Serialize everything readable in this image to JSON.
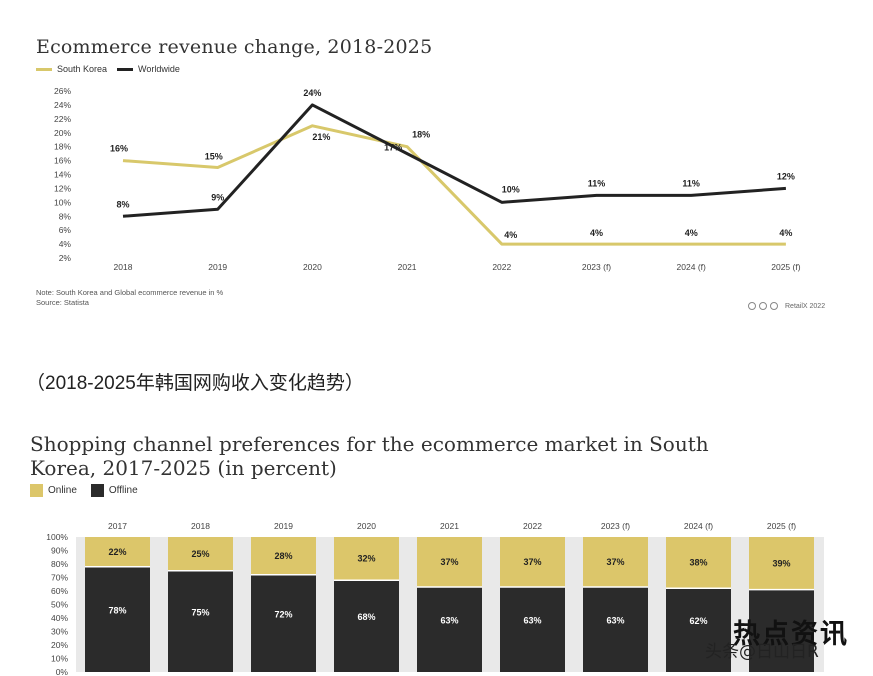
{
  "chart_data": [
    {
      "type": "line",
      "title": "Ecommerce revenue change, 2018-2025",
      "categories": [
        "2018",
        "2019",
        "2020",
        "2021",
        "2022",
        "2023 (f)",
        "2024 (f)",
        "2025 (f)"
      ],
      "series": [
        {
          "name": "South Korea",
          "values": [
            16,
            15,
            21,
            18,
            4,
            4,
            4,
            4
          ],
          "labels": [
            "16%",
            "15%",
            "21%",
            "18%",
            "4%",
            "4%",
            "4%",
            "4%"
          ],
          "color": "#d8c86b"
        },
        {
          "name": "Worldwide",
          "values": [
            8,
            9,
            24,
            17,
            10,
            11,
            11,
            12
          ],
          "labels": [
            "8%",
            "9%",
            "24%",
            "17%",
            "10%",
            "11%",
            "11%",
            "12%"
          ],
          "color": "#222222"
        }
      ],
      "yticks": [
        "2%",
        "4%",
        "6%",
        "8%",
        "10%",
        "12%",
        "14%",
        "16%",
        "18%",
        "20%",
        "22%",
        "24%",
        "26%"
      ],
      "ylim": [
        2,
        26
      ],
      "grid": false,
      "legend": "top-left",
      "note": "Note: South Korea and Global ecommerce revenue in %",
      "source": "Source: Statista",
      "credit": "RetailX 2022"
    },
    {
      "type": "bar",
      "stacked": true,
      "title": "Shopping channel preferences for the ecommerce market in South Korea, 2017-2025 (in percent)",
      "categories": [
        "2017",
        "2018",
        "2019",
        "2020",
        "2021",
        "2022",
        "2023 (f)",
        "2024 (f)",
        "2025 (f)"
      ],
      "series": [
        {
          "name": "Offline",
          "values": [
            78,
            75,
            72,
            68,
            63,
            63,
            63,
            62,
            61
          ],
          "labels": [
            "78%",
            "75%",
            "72%",
            "68%",
            "63%",
            "63%",
            "63%",
            "62%",
            ""
          ],
          "color": "#2b2b2b"
        },
        {
          "name": "Online",
          "values": [
            22,
            25,
            28,
            32,
            37,
            37,
            37,
            38,
            39
          ],
          "labels": [
            "22%",
            "25%",
            "28%",
            "32%",
            "37%",
            "37%",
            "37%",
            "38%",
            "39%"
          ],
          "color": "#dcc66a"
        }
      ],
      "yticks": [
        "0%",
        "10%",
        "20%",
        "30%",
        "40%",
        "50%",
        "60%",
        "70%",
        "80%",
        "90%",
        "100%"
      ],
      "ylim": [
        0,
        100
      ],
      "legend": "top-left"
    }
  ],
  "caption": "（2018-2025年韩国网购收入变化趋势）",
  "watermark": {
    "logo": "热点资讯",
    "text": "头条@日山日R"
  }
}
